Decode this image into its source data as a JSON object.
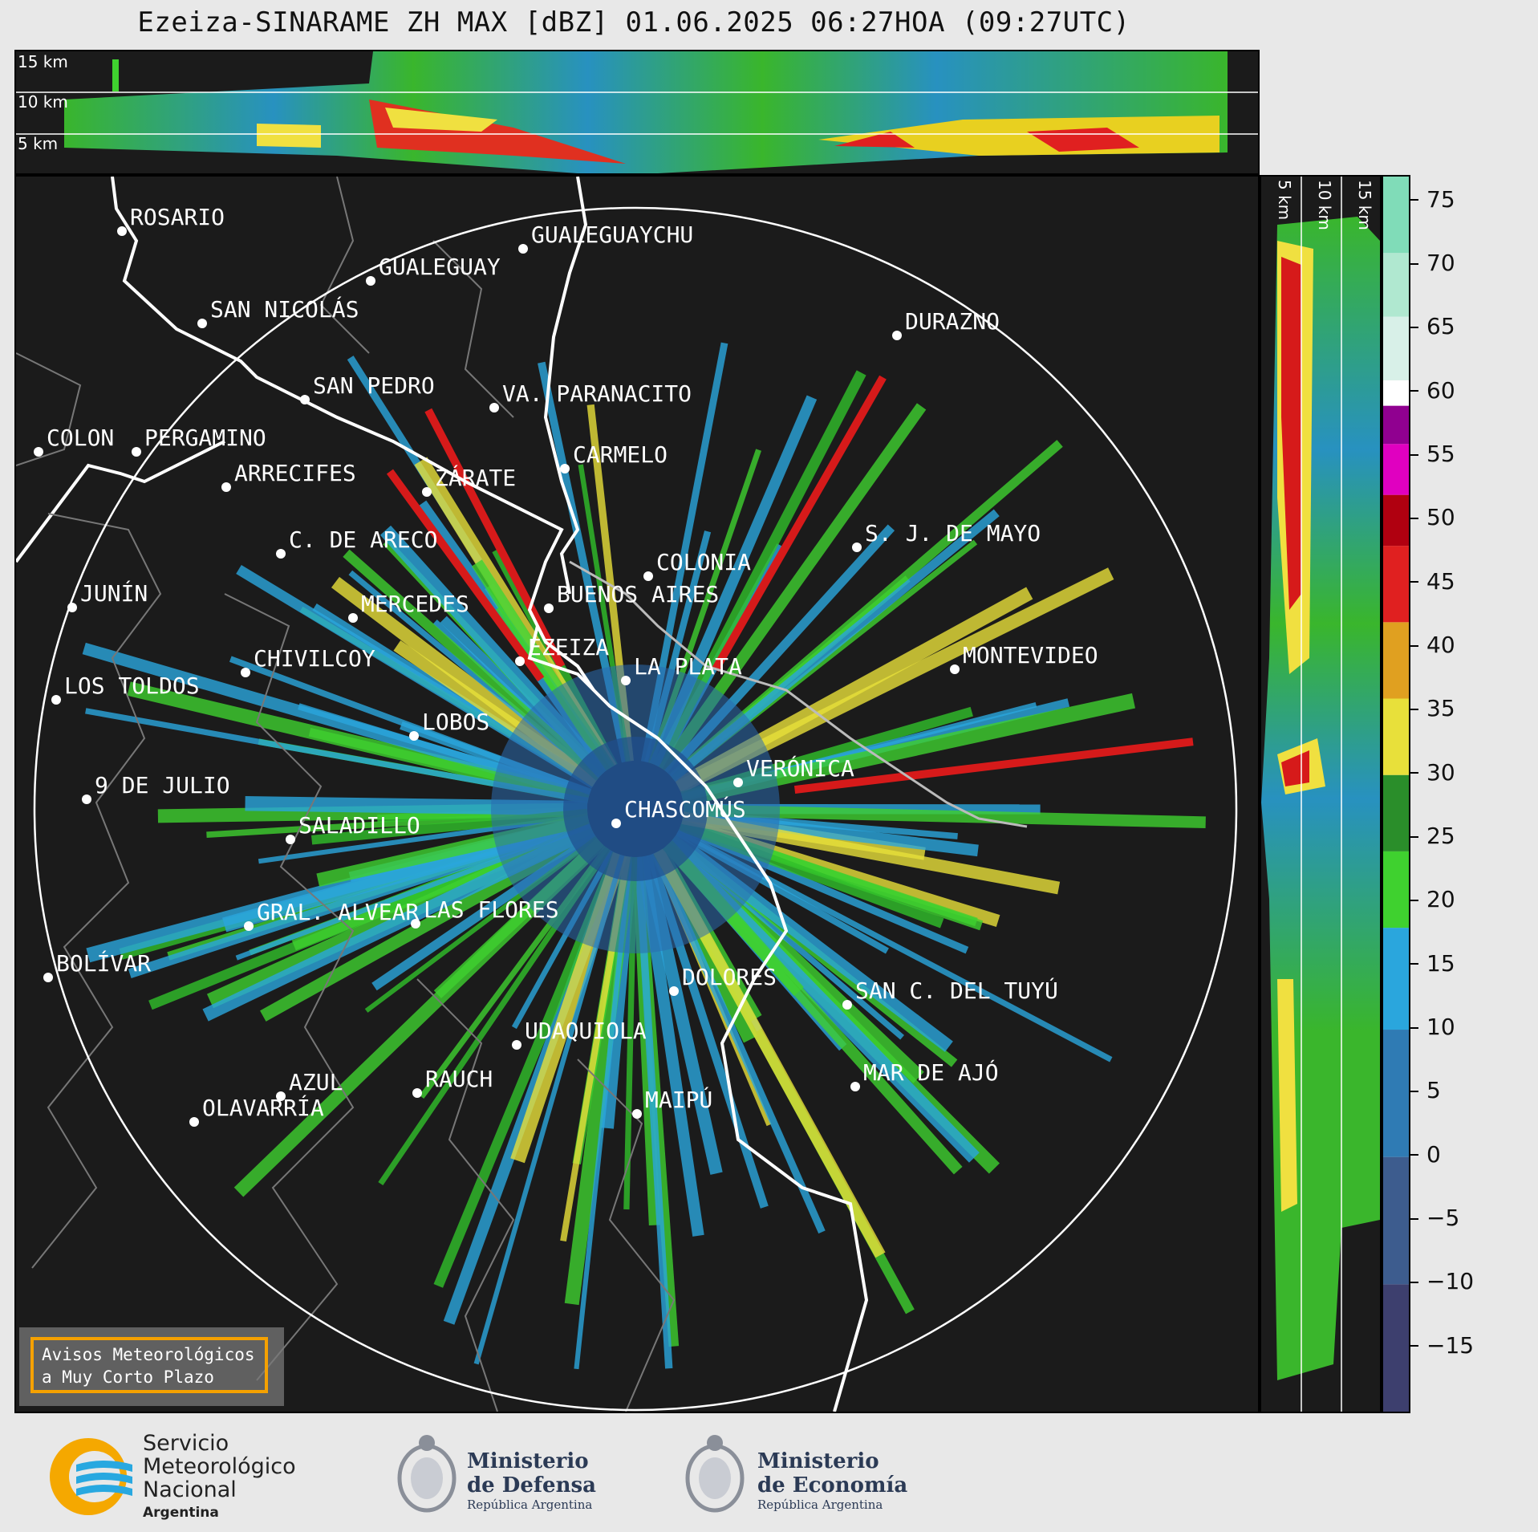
{
  "title": "Ezeiza-SINARAME ZH MAX [dBZ] 01.06.2025 06:27HOA (09:27UTC)",
  "top_panel": {
    "altitude_labels": [
      "15 km",
      "10 km",
      "5 km"
    ]
  },
  "side_panel": {
    "altitude_labels": [
      "5 km",
      "10 km",
      "15 km"
    ]
  },
  "cities": [
    {
      "name": "ROSARIO"
    },
    {
      "name": "GUALEGUAYCHU"
    },
    {
      "name": "GUALEGUAY"
    },
    {
      "name": "SAN NICOLÁS"
    },
    {
      "name": "DURAZNO"
    },
    {
      "name": "SAN PEDRO"
    },
    {
      "name": "VA. PARANACITO"
    },
    {
      "name": "COLON"
    },
    {
      "name": "PERGAMINO"
    },
    {
      "name": "CARMELO"
    },
    {
      "name": "ARRECIFES"
    },
    {
      "name": "ZÁRATE"
    },
    {
      "name": "C. DE ARECO"
    },
    {
      "name": "S. J. DE MAYO"
    },
    {
      "name": "COLONIA"
    },
    {
      "name": "JUNÍN"
    },
    {
      "name": "BUENOS AIRES"
    },
    {
      "name": "MERCEDES"
    },
    {
      "name": "EZEIZA"
    },
    {
      "name": "MONTEVIDEO"
    },
    {
      "name": "CHIVILCOY"
    },
    {
      "name": "LA PLATA"
    },
    {
      "name": "LOS TOLDOS"
    },
    {
      "name": "LOBOS"
    },
    {
      "name": "VERÓNICA"
    },
    {
      "name": "9 DE JULIO"
    },
    {
      "name": "CHASCOMÚS"
    },
    {
      "name": "SALADILLO"
    },
    {
      "name": "GRAL. ALVEAR"
    },
    {
      "name": "LAS FLORES"
    },
    {
      "name": "BOLÍVAR"
    },
    {
      "name": "DOLORES"
    },
    {
      "name": "SAN C. DEL TUYÚ"
    },
    {
      "name": "UDAQUIOLA"
    },
    {
      "name": "MAR DE AJÓ"
    },
    {
      "name": "AZUL"
    },
    {
      "name": "RAUCH"
    },
    {
      "name": "OLAVARRÍA"
    },
    {
      "name": "MAIPÚ"
    }
  ],
  "colorbar": {
    "unit": "dBZ",
    "ticks": [
      "75",
      "70",
      "65",
      "60",
      "55",
      "50",
      "45",
      "40",
      "35",
      "30",
      "25",
      "20",
      "15",
      "10",
      "5",
      "0",
      "−5",
      "−10",
      "−15"
    ],
    "range": [
      -20,
      77
    ]
  },
  "warning_box": {
    "line1": "Avisos Meteorológicos",
    "line2": "a Muy Corto Plazo"
  },
  "footer": {
    "smn": {
      "line1": "Servicio",
      "line2": "Meteorológico",
      "line3": "Nacional",
      "line4": "Argentina"
    },
    "defensa": {
      "line1": "Ministerio",
      "line2": "de Defensa",
      "line3": "República Argentina"
    },
    "economia": {
      "line1": "Ministerio",
      "line2": "de Economía",
      "line3": "República Argentina"
    }
  }
}
